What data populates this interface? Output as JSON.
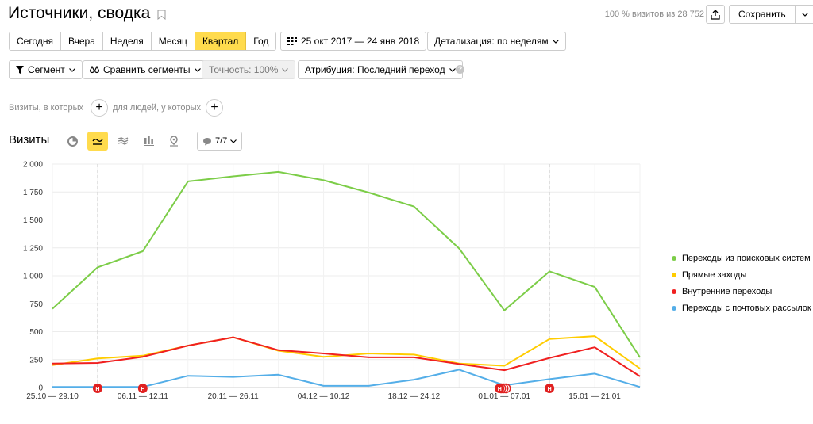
{
  "header": {
    "title": "Источники, сводка",
    "visits_summary": "100 % визитов из 28 752",
    "save_label": "Сохранить"
  },
  "period": {
    "buttons": [
      "Сегодня",
      "Вчера",
      "Неделя",
      "Месяц",
      "Квартал",
      "Год"
    ],
    "active": "Квартал",
    "date_range": "25 окт 2017 — 24 янв 2018",
    "detail": "Детализация: по неделям"
  },
  "filters": {
    "segment": "Сегмент",
    "compare": "Сравнить сегменты",
    "accuracy": "Точность: 100%",
    "attribution": "Атрибуция: Последний переход"
  },
  "conditions": {
    "visits_label": "Визиты, в которых",
    "people_label": "для людей, у которых"
  },
  "chart_header": {
    "title": "Визиты",
    "notes_count": "7/7",
    "types": [
      "pie-chart-icon",
      "line-chart-icon",
      "area-chart-icon",
      "bar-chart-icon",
      "map-icon"
    ],
    "active_type": "line-chart-icon"
  },
  "chart_data": {
    "type": "line",
    "x": [
      "25.10 — 29.10",
      "30.10 — 05.11",
      "06.11 — 12.11",
      "13.11 — 19.11",
      "20.11 — 26.11",
      "27.11 — 03.12",
      "04.12 — 10.12",
      "11.12 — 17.12",
      "18.12 — 24.12",
      "25.12 — 31.12",
      "01.01 — 07.01",
      "08.01 — 14.01",
      "15.01 — 21.01",
      "22.01 — 24.01"
    ],
    "xtick_labels": [
      "25.10 — 29.10",
      "06.11 — 12.11",
      "20.11 — 26.11",
      "04.12 — 10.12",
      "18.12 — 24.12",
      "01.01 — 07.01",
      "15.01 — 21.01"
    ],
    "xtick_indices": [
      0,
      2,
      4,
      6,
      8,
      10,
      12
    ],
    "ylim": [
      0,
      2000
    ],
    "yticks": [
      0,
      250,
      500,
      750,
      1000,
      1250,
      1500,
      1750,
      2000
    ],
    "ytick_labels": [
      "0",
      "250",
      "500",
      "750",
      "1 000",
      "1 250",
      "1 500",
      "1 750",
      "2 000"
    ],
    "grid": true,
    "legend_position": "right",
    "series": [
      {
        "name": "Переходы из поисковых систем",
        "color": "#7ccd48",
        "values": [
          705,
          1075,
          1220,
          1845,
          1890,
          1930,
          1855,
          1745,
          1620,
          1245,
          690,
          1040,
          900,
          270
        ]
      },
      {
        "name": "Прямые заходы",
        "color": "#ffcc00",
        "values": [
          200,
          260,
          285,
          375,
          450,
          330,
          275,
          305,
          295,
          215,
          195,
          435,
          460,
          170
        ]
      },
      {
        "name": "Внутренние переходы",
        "color": "#f02020",
        "values": [
          215,
          220,
          275,
          375,
          450,
          335,
          305,
          270,
          270,
          210,
          155,
          265,
          360,
          100
        ]
      },
      {
        "name": "Переходы с почтовых рассылок",
        "color": "#54aee8",
        "values": [
          5,
          5,
          5,
          105,
          95,
          115,
          15,
          15,
          70,
          160,
          20,
          75,
          125,
          5
        ]
      }
    ],
    "annotations": [
      {
        "x_index": 1,
        "label": "Н"
      },
      {
        "x_index": 2,
        "label": "Н"
      },
      {
        "x_index": 10,
        "label": "Н"
      },
      {
        "x_index": 11,
        "label": "Н"
      }
    ],
    "dashed_x_indices": [
      1,
      11
    ]
  }
}
